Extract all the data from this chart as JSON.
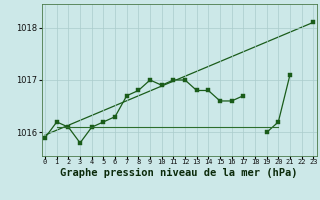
{
  "xlabel": "Graphe pression niveau de la mer (hPa)",
  "hours": [
    0,
    1,
    2,
    3,
    4,
    5,
    6,
    7,
    8,
    9,
    10,
    11,
    12,
    13,
    14,
    15,
    16,
    17,
    18,
    19,
    20,
    21,
    22,
    23
  ],
  "pressure_main": [
    1015.9,
    1016.2,
    1016.1,
    1015.8,
    1016.1,
    1016.2,
    1016.3,
    1016.7,
    1016.8,
    1017.0,
    1016.9,
    1017.0,
    1017.0,
    1016.8,
    1016.8,
    1016.6,
    1016.6,
    1016.7,
    null,
    1016.0,
    1016.2,
    1017.1,
    null,
    1018.1
  ],
  "flat_line_x": [
    1,
    2,
    3,
    4,
    5,
    6,
    7,
    8,
    9,
    10,
    11,
    12,
    13,
    14,
    15,
    16,
    17,
    18,
    19,
    20
  ],
  "flat_line_y": [
    1016.1,
    1016.1,
    1016.1,
    1016.1,
    1016.1,
    1016.1,
    1016.1,
    1016.1,
    1016.1,
    1016.1,
    1016.1,
    1016.1,
    1016.1,
    1016.1,
    1016.1,
    1016.1,
    1016.1,
    1016.1,
    1016.1,
    1016.1
  ],
  "trend_x": [
    0,
    23
  ],
  "trend_y": [
    1015.95,
    1018.1
  ],
  "ylim_min": 1015.55,
  "ylim_max": 1018.45,
  "xlim_min": -0.3,
  "xlim_max": 23.3,
  "bg_color": "#cce8e8",
  "grid_color": "#aacccc",
  "line_dark": "#1a5c1a",
  "line_mid": "#2d6e2d",
  "marker_size": 2.5,
  "lw_main": 0.9,
  "lw_flat": 0.8,
  "lw_trend": 0.9,
  "xlabel_fontsize": 7.5,
  "ytick_fontsize": 6,
  "xtick_fontsize": 5
}
